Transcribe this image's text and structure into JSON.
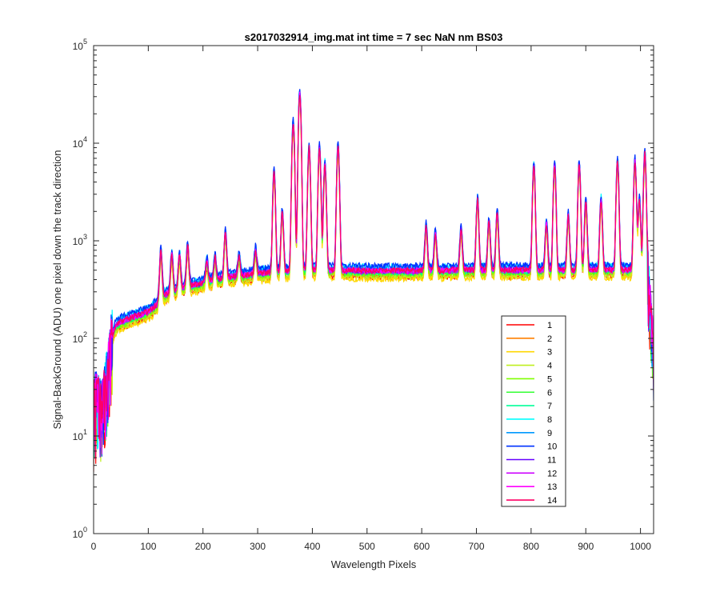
{
  "chart_data": {
    "type": "line",
    "title": "s2017032914_img.mat int time = 7 sec  NaN nm BS03",
    "xlabel": "Wavelength Pixels",
    "ylabel": "Signal-BackGround (ADU) one pixel down the track direction",
    "xlim": [
      0,
      1024
    ],
    "ylim": [
      1,
      100000
    ],
    "yscale": "log",
    "grid": false,
    "legend_position": "lower-right",
    "x_ticks": [
      {
        "value": 0,
        "label": "0"
      },
      {
        "value": 100,
        "label": "100"
      },
      {
        "value": 200,
        "label": "200"
      },
      {
        "value": 300,
        "label": "300"
      },
      {
        "value": 400,
        "label": "400"
      },
      {
        "value": 500,
        "label": "500"
      },
      {
        "value": 600,
        "label": "600"
      },
      {
        "value": 700,
        "label": "700"
      },
      {
        "value": 800,
        "label": "800"
      },
      {
        "value": 900,
        "label": "900"
      },
      {
        "value": 1000,
        "label": "1000"
      }
    ],
    "y_ticks": [
      {
        "value": 1,
        "base": "10",
        "exp": "0"
      },
      {
        "value": 10,
        "base": "10",
        "exp": "1"
      },
      {
        "value": 100,
        "base": "10",
        "exp": "2"
      },
      {
        "value": 1000,
        "base": "10",
        "exp": "3"
      },
      {
        "value": 10000,
        "base": "10",
        "exp": "4"
      },
      {
        "value": 100000,
        "base": "10",
        "exp": "5"
      }
    ],
    "baseline": [
      [
        0,
        20
      ],
      [
        5,
        25
      ],
      [
        10,
        22
      ],
      [
        15,
        18
      ],
      [
        20,
        28
      ],
      [
        25,
        40
      ],
      [
        30,
        70
      ],
      [
        35,
        110
      ],
      [
        40,
        135
      ],
      [
        50,
        150
      ],
      [
        60,
        155
      ],
      [
        70,
        165
      ],
      [
        80,
        172
      ],
      [
        90,
        180
      ],
      [
        100,
        190
      ],
      [
        110,
        210
      ],
      [
        120,
        240
      ],
      [
        130,
        280
      ],
      [
        140,
        300
      ],
      [
        150,
        310
      ],
      [
        160,
        325
      ],
      [
        170,
        340
      ],
      [
        180,
        350
      ],
      [
        190,
        360
      ],
      [
        200,
        375
      ],
      [
        220,
        400
      ],
      [
        240,
        420
      ],
      [
        260,
        440
      ],
      [
        280,
        450
      ],
      [
        300,
        465
      ],
      [
        320,
        475
      ],
      [
        340,
        485
      ],
      [
        360,
        495
      ],
      [
        380,
        500
      ],
      [
        400,
        505
      ],
      [
        420,
        510
      ],
      [
        440,
        505
      ],
      [
        460,
        500
      ],
      [
        480,
        498
      ],
      [
        500,
        495
      ],
      [
        520,
        495
      ],
      [
        540,
        495
      ],
      [
        560,
        495
      ],
      [
        580,
        495
      ],
      [
        600,
        500
      ],
      [
        620,
        500
      ],
      [
        640,
        500
      ],
      [
        660,
        505
      ],
      [
        680,
        505
      ],
      [
        700,
        505
      ],
      [
        720,
        505
      ],
      [
        740,
        505
      ],
      [
        760,
        505
      ],
      [
        780,
        505
      ],
      [
        800,
        505
      ],
      [
        820,
        505
      ],
      [
        840,
        505
      ],
      [
        860,
        505
      ],
      [
        880,
        505
      ],
      [
        900,
        510
      ],
      [
        920,
        510
      ],
      [
        940,
        510
      ],
      [
        960,
        510
      ],
      [
        980,
        510
      ],
      [
        1000,
        510
      ],
      [
        1008,
        480
      ],
      [
        1012,
        380
      ],
      [
        1016,
        300
      ],
      [
        1020,
        150
      ],
      [
        1024,
        60
      ]
    ],
    "peaks": [
      {
        "x": 123,
        "y": 780
      },
      {
        "x": 143,
        "y": 720
      },
      {
        "x": 157,
        "y": 720
      },
      {
        "x": 172,
        "y": 880
      },
      {
        "x": 207,
        "y": 620
      },
      {
        "x": 222,
        "y": 680
      },
      {
        "x": 241,
        "y": 1200
      },
      {
        "x": 266,
        "y": 700
      },
      {
        "x": 296,
        "y": 800
      },
      {
        "x": 330,
        "y": 5000
      },
      {
        "x": 345,
        "y": 2000
      },
      {
        "x": 365,
        "y": 16000
      },
      {
        "x": 377,
        "y": 33000
      },
      {
        "x": 394,
        "y": 9000
      },
      {
        "x": 413,
        "y": 9000
      },
      {
        "x": 423,
        "y": 6000
      },
      {
        "x": 447,
        "y": 9300
      },
      {
        "x": 608,
        "y": 1400
      },
      {
        "x": 625,
        "y": 1200
      },
      {
        "x": 672,
        "y": 1300
      },
      {
        "x": 702,
        "y": 2600
      },
      {
        "x": 723,
        "y": 1600
      },
      {
        "x": 738,
        "y": 1900
      },
      {
        "x": 805,
        "y": 5800
      },
      {
        "x": 828,
        "y": 1500
      },
      {
        "x": 843,
        "y": 6000
      },
      {
        "x": 868,
        "y": 1800
      },
      {
        "x": 888,
        "y": 6000
      },
      {
        "x": 900,
        "y": 2500
      },
      {
        "x": 928,
        "y": 2600
      },
      {
        "x": 958,
        "y": 6500
      },
      {
        "x": 990,
        "y": 6400
      },
      {
        "x": 998,
        "y": 2600
      },
      {
        "x": 1008,
        "y": 7800
      }
    ],
    "series": [
      {
        "name": "1",
        "color": "#ff0000",
        "scale": 0.86
      },
      {
        "name": "2",
        "color": "#ff7f00",
        "scale": 0.9
      },
      {
        "name": "3",
        "color": "#ffd700",
        "scale": 0.82
      },
      {
        "name": "4",
        "color": "#bfef1f",
        "scale": 0.88
      },
      {
        "name": "5",
        "color": "#7fff00",
        "scale": 0.92
      },
      {
        "name": "6",
        "color": "#33ff33",
        "scale": 0.95
      },
      {
        "name": "7",
        "color": "#00ff99",
        "scale": 0.97
      },
      {
        "name": "8",
        "color": "#00ffff",
        "scale": 1.1
      },
      {
        "name": "9",
        "color": "#0099ff",
        "scale": 1.05
      },
      {
        "name": "10",
        "color": "#0033ff",
        "scale": 1.12
      },
      {
        "name": "11",
        "color": "#6600ff",
        "scale": 1.0
      },
      {
        "name": "12",
        "color": "#cc00ff",
        "scale": 0.98
      },
      {
        "name": "13",
        "color": "#ff00ff",
        "scale": 1.0
      },
      {
        "name": "14",
        "color": "#ff0066",
        "scale": 1.0
      }
    ]
  }
}
